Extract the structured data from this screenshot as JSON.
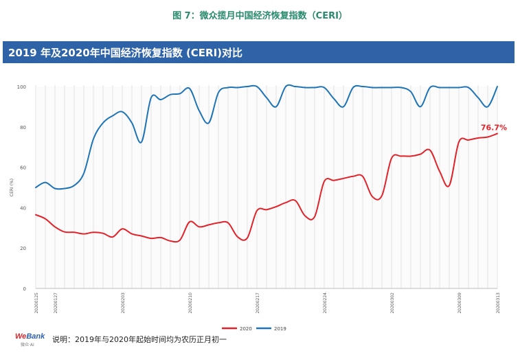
{
  "figure_caption": "图 7：微众揽月中国经济恢复指数（CERI）",
  "title_bar": "2019 年及2020年中国经济恢复指数 (CERI)对比",
  "footer": {
    "logo_we": "We",
    "logo_bank": "Bank",
    "logo_sub": "微众·AI",
    "note": "说明：2019年与2020年起始时间均为农历正月初一"
  },
  "colors": {
    "series_2020": "#e32128",
    "series_2019": "#1d73b6",
    "title_bar": "#2f63a8",
    "caption": "#2a8a6e"
  },
  "chart_data": {
    "type": "line",
    "xlabel": "",
    "ylabel": "CERI (%)",
    "ylim": [
      0,
      100
    ],
    "yticks": [
      0,
      20,
      40,
      60,
      80,
      100
    ],
    "x_count": 49,
    "x_ticks": [
      {
        "i": 0,
        "label": "20200125"
      },
      {
        "i": 2,
        "label": "20200127"
      },
      {
        "i": 9,
        "label": "20200203"
      },
      {
        "i": 16,
        "label": "20200210"
      },
      {
        "i": 23,
        "label": "20200217"
      },
      {
        "i": 30,
        "label": "20200224"
      },
      {
        "i": 37,
        "label": "20200302"
      },
      {
        "i": 44,
        "label": "20200309"
      },
      {
        "i": 48,
        "label": "20200313"
      }
    ],
    "annotation": {
      "text": "76.7%",
      "series": "2020",
      "i": 48
    },
    "legend": {
      "position": "bottom-center"
    },
    "grid": "vertical-dense",
    "series": [
      {
        "name": "2020",
        "values": [
          36.5,
          34.5,
          30.5,
          28,
          27.8,
          27,
          27.8,
          27.3,
          25.5,
          29.5,
          27,
          26,
          24.8,
          25.2,
          23.5,
          24,
          33,
          30.5,
          31.5,
          32.5,
          32.5,
          25.5,
          25,
          38.5,
          39,
          40.5,
          42.5,
          43.5,
          36,
          35.5,
          53,
          53.5,
          54.5,
          55.5,
          55.5,
          45.5,
          46,
          64.5,
          65.5,
          65.5,
          66.5,
          68.5,
          58,
          51,
          72.5,
          73.5,
          74.5,
          75,
          76.7
        ]
      },
      {
        "name": "2019",
        "values": [
          50,
          52.5,
          49.5,
          49.5,
          51,
          57,
          74,
          82,
          85.5,
          87.5,
          82,
          72.5,
          94.5,
          93.5,
          96,
          96.5,
          99,
          88,
          82,
          97,
          99.5,
          99.5,
          100,
          100,
          94.5,
          90,
          100,
          100,
          99.5,
          99.5,
          99.5,
          94,
          90,
          99.5,
          100,
          99.5,
          99.5,
          99.5,
          99.5,
          97.5,
          90,
          99.5,
          99.5,
          99.5,
          99.5,
          99.5,
          94.5,
          90,
          100
        ]
      }
    ]
  }
}
